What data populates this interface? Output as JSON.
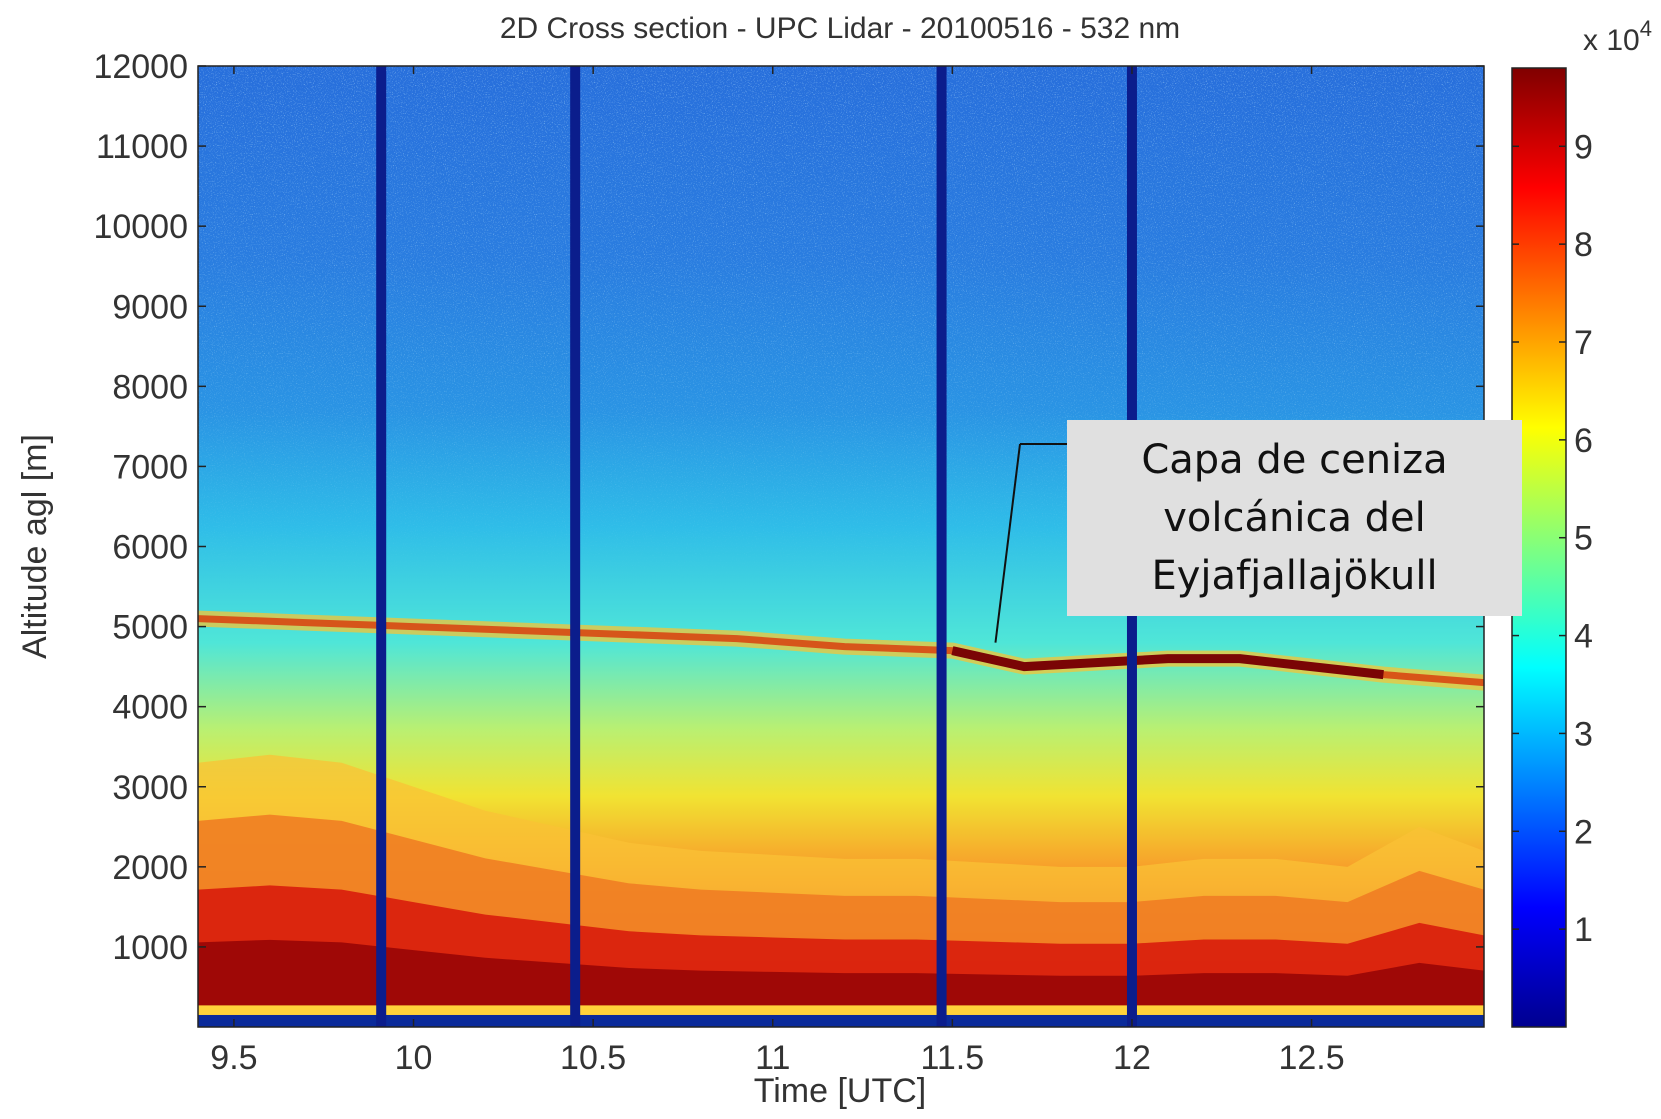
{
  "chart_data": {
    "type": "heatmap",
    "title": "2D Cross section - UPC Lidar - 20100516 - 532 nm",
    "xlabel": "Time [UTC]",
    "ylabel": "Altitude agl [m]",
    "xlim": [
      9.4,
      12.98
    ],
    "ylim": [
      0,
      12000
    ],
    "x_ticks": [
      9.5,
      10,
      10.5,
      11,
      11.5,
      12,
      12.5
    ],
    "x_tick_labels": [
      "9.5",
      "10",
      "10.5",
      "11",
      "11.5",
      "12",
      "12.5"
    ],
    "y_ticks": [
      1000,
      2000,
      3000,
      4000,
      5000,
      6000,
      7000,
      8000,
      9000,
      10000,
      11000,
      12000
    ],
    "y_tick_labels": [
      "1000",
      "2000",
      "3000",
      "4000",
      "5000",
      "6000",
      "7000",
      "8000",
      "9000",
      "10000",
      "11000",
      "12000"
    ],
    "colorbar": {
      "range": [
        0,
        98000
      ],
      "ticks": [
        10000,
        20000,
        30000,
        40000,
        50000,
        60000,
        70000,
        80000,
        90000
      ],
      "tick_labels": [
        "1",
        "2",
        "3",
        "4",
        "5",
        "6",
        "7",
        "8",
        "9"
      ],
      "multiplier_prefix": "x 10",
      "multiplier_exponent": "4",
      "colormap": "jet"
    },
    "data_gaps_time": [
      9.91,
      10.45,
      11.47,
      12.0
    ],
    "ash_layer": {
      "time": [
        9.4,
        9.7,
        10.0,
        10.3,
        10.6,
        10.9,
        11.2,
        11.5,
        11.7,
        11.9,
        12.1,
        12.3,
        12.5,
        12.7,
        12.98
      ],
      "altitude": [
        5100,
        5050,
        5000,
        4950,
        4900,
        4850,
        4750,
        4700,
        4500,
        4550,
        4600,
        4600,
        4500,
        4400,
        4300
      ]
    },
    "boundary_layer_top": {
      "time": [
        9.4,
        9.6,
        9.8,
        10.0,
        10.2,
        10.4,
        10.6,
        10.8,
        11.0,
        11.2,
        11.4,
        11.6,
        11.8,
        12.0,
        12.2,
        12.4,
        12.6,
        12.8,
        12.98
      ],
      "altitude": [
        3300,
        3400,
        3300,
        3000,
        2700,
        2500,
        2300,
        2200,
        2150,
        2100,
        2100,
        2050,
        2000,
        2000,
        2100,
        2100,
        2000,
        2500,
        2200
      ]
    },
    "annotation": {
      "lines": [
        "Capa de ceniza",
        "volcánica del",
        "Eyjafjallajökull"
      ],
      "points_to": {
        "time": 11.62,
        "altitude": 4800
      }
    }
  }
}
